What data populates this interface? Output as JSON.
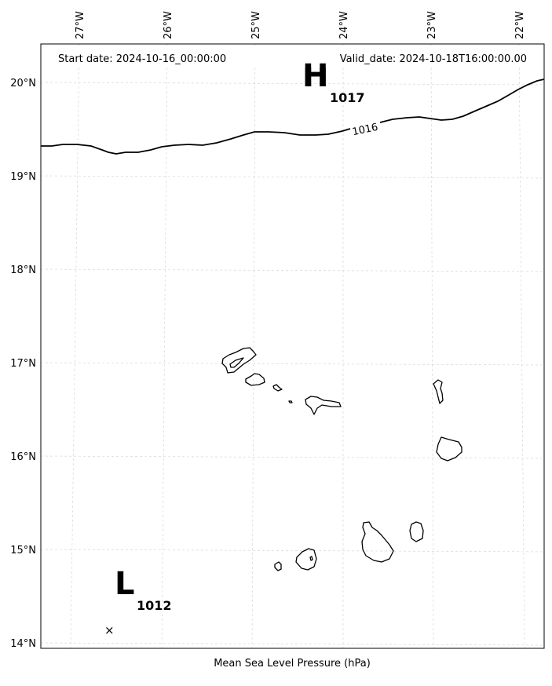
{
  "header": {
    "start_date": "Start date: 2024-10-16_00:00:00",
    "valid_date": "Valid_date: 2024-10-18T16:00:00.00"
  },
  "caption": "Mean Sea Level Pressure (hPa)",
  "lon_ticks": [
    "27°W",
    "26°W",
    "25°W",
    "24°W",
    "23°W",
    "22°W"
  ],
  "lat_ticks": [
    "20°N",
    "19°N",
    "18°N",
    "17°N",
    "16°N",
    "15°N",
    "14°N"
  ],
  "isobars": [
    {
      "label": "1016"
    }
  ],
  "pressure_centers": [
    {
      "type": "H",
      "value": "1017"
    },
    {
      "type": "L",
      "value": "1012"
    }
  ],
  "markers": [
    {
      "symbol": "×"
    }
  ]
}
